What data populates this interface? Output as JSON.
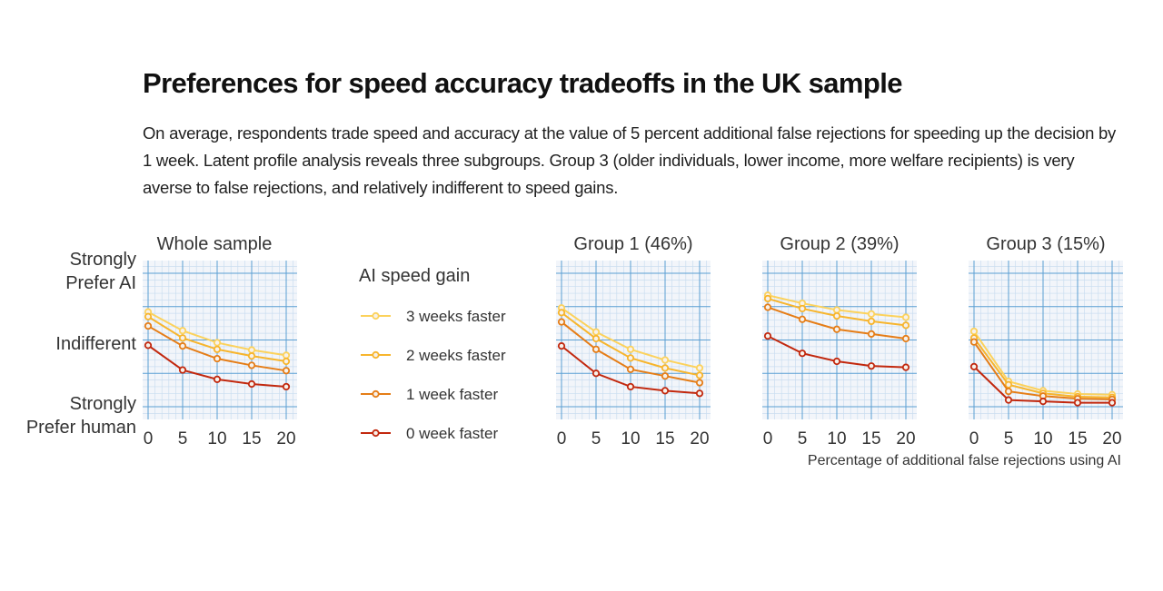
{
  "title": "Preferences for speed accuracy tradeoffs in the UK sample",
  "subtitle": "On average, respondents trade speed and accuracy at the value of 5 percent additional false rejections for speeding up the decision by 1 week. Latent profile analysis reveals three subgroups. Group 3 (older individuals, lower income, more welfare recipients) is very averse to false rejections, and relatively indifferent to speed gains.",
  "legend": {
    "title": "AI speed gain",
    "placement": "center-left"
  },
  "y_axis_labels": {
    "top": [
      "Strongly",
      "Prefer AI"
    ],
    "middle": [
      "Indifferent"
    ],
    "bottom": [
      "Strongly",
      "Prefer human"
    ]
  },
  "xlabel": "Percentage of additional false rejections using AI",
  "colors": {
    "3 weeks faster": "#fcd25c",
    "2 weeks faster": "#f7b52d",
    "1 week faster": "#e57d17",
    "0 week faster": "#c2280e",
    "grid_major": "#5b9fd3",
    "grid_minor": "#c9ddf0",
    "panel_bg": "#f2f5fa"
  },
  "chart_data": [
    {
      "type": "line",
      "title": "Whole sample",
      "x": [
        0,
        5,
        10,
        15,
        20
      ],
      "ylim": [
        -1,
        1
      ],
      "grid": true,
      "series": [
        {
          "name": "3 weeks faster",
          "values": [
            0.42,
            0.14,
            -0.04,
            -0.15,
            -0.23
          ]
        },
        {
          "name": "2 weeks faster",
          "values": [
            0.35,
            0.03,
            -0.14,
            -0.24,
            -0.32
          ]
        },
        {
          "name": "1 week faster",
          "values": [
            0.21,
            -0.09,
            -0.28,
            -0.38,
            -0.46
          ]
        },
        {
          "name": "0 week faster",
          "values": [
            -0.08,
            -0.45,
            -0.59,
            -0.66,
            -0.7
          ]
        }
      ]
    },
    {
      "type": "line",
      "title": "Group 1 (46%)",
      "x": [
        0,
        5,
        10,
        15,
        20
      ],
      "ylim": [
        -1,
        1
      ],
      "grid": true,
      "series": [
        {
          "name": "3 weeks faster",
          "values": [
            0.48,
            0.12,
            -0.14,
            -0.3,
            -0.42
          ]
        },
        {
          "name": "2 weeks faster",
          "values": [
            0.41,
            0.02,
            -0.27,
            -0.42,
            -0.53
          ]
        },
        {
          "name": "1 week faster",
          "values": [
            0.27,
            -0.14,
            -0.44,
            -0.54,
            -0.64
          ]
        },
        {
          "name": "0 week faster",
          "values": [
            -0.09,
            -0.5,
            -0.7,
            -0.76,
            -0.8
          ]
        }
      ]
    },
    {
      "type": "line",
      "title": "Group 2 (39%)",
      "x": [
        0,
        5,
        10,
        15,
        20
      ],
      "ylim": [
        -1,
        1
      ],
      "grid": true,
      "series": [
        {
          "name": "3 weeks faster",
          "values": [
            0.67,
            0.55,
            0.45,
            0.39,
            0.34
          ]
        },
        {
          "name": "2 weeks faster",
          "values": [
            0.62,
            0.47,
            0.36,
            0.28,
            0.22
          ]
        },
        {
          "name": "1 week faster",
          "values": [
            0.49,
            0.31,
            0.16,
            0.09,
            0.02
          ]
        },
        {
          "name": "0 week faster",
          "values": [
            0.06,
            -0.2,
            -0.32,
            -0.39,
            -0.41
          ]
        }
      ]
    },
    {
      "type": "line",
      "title": "Group 3 (15%)",
      "x": [
        0,
        5,
        10,
        15,
        20
      ],
      "ylim": [
        -1,
        1
      ],
      "grid": true,
      "series": [
        {
          "name": "3 weeks faster",
          "values": [
            0.13,
            -0.62,
            -0.76,
            -0.81,
            -0.82
          ]
        },
        {
          "name": "2 weeks faster",
          "values": [
            0.03,
            -0.67,
            -0.8,
            -0.85,
            -0.86
          ]
        },
        {
          "name": "1 week faster",
          "values": [
            -0.03,
            -0.77,
            -0.84,
            -0.88,
            -0.89
          ]
        },
        {
          "name": "0 week faster",
          "values": [
            -0.4,
            -0.9,
            -0.92,
            -0.94,
            -0.94
          ]
        }
      ]
    }
  ]
}
